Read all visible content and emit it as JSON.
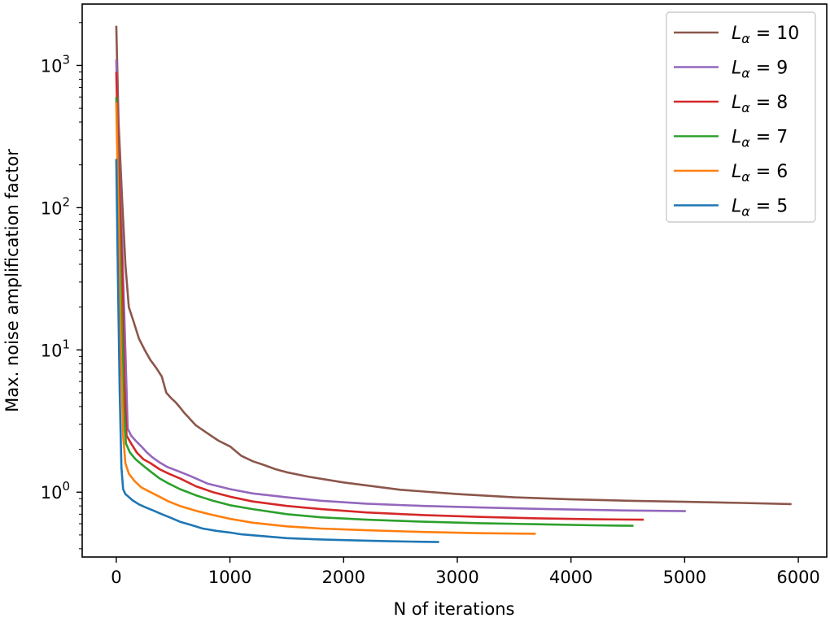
{
  "chart_data": {
    "type": "line",
    "xlabel": "N of iterations",
    "ylabel": "Max. noise amplification factor",
    "xscale": "linear",
    "yscale": "log",
    "xlim": [
      -300,
      6250
    ],
    "ylim": [
      0.35,
      2700
    ],
    "x_ticks": [
      0,
      1000,
      2000,
      3000,
      4000,
      5000,
      6000
    ],
    "x_tick_labels": [
      "0",
      "1000",
      "2000",
      "3000",
      "4000",
      "5000",
      "6000"
    ],
    "y_ticks": [
      {
        "value": 1,
        "base": "10",
        "exponent": "0"
      },
      {
        "value": 10,
        "base": "10",
        "exponent": "1"
      },
      {
        "value": 100,
        "base": "10",
        "exponent": "2"
      },
      {
        "value": 1000,
        "base": "10",
        "exponent": "3"
      }
    ],
    "grid": false,
    "legend_position": "top-right",
    "series": [
      {
        "name": "L_α = 10",
        "legend_prefix": "L",
        "legend_sub": "α",
        "legend_suffix": " = 10",
        "color": "#8c564b",
        "x": [
          0,
          20,
          50,
          80,
          110,
          150,
          200,
          250,
          300,
          350,
          400,
          440,
          480,
          520,
          560,
          600,
          700,
          800,
          900,
          1000,
          1100,
          1200,
          1300,
          1400,
          1500,
          1700,
          2000,
          2500,
          3000,
          3500,
          4000,
          4500,
          5000,
          5500,
          5940
        ],
        "y": [
          1900,
          400,
          120,
          40,
          20,
          16,
          12,
          10,
          8.5,
          7.5,
          6.5,
          5.0,
          4.6,
          4.3,
          3.95,
          3.6,
          2.95,
          2.6,
          2.3,
          2.1,
          1.8,
          1.65,
          1.55,
          1.45,
          1.38,
          1.28,
          1.17,
          1.04,
          0.97,
          0.92,
          0.89,
          0.87,
          0.855,
          0.84,
          0.825
        ]
      },
      {
        "name": "L_α = 9",
        "legend_prefix": "L",
        "legend_sub": "α",
        "legend_suffix": " = 9",
        "color": "#9467bd",
        "x": [
          0,
          20,
          50,
          80,
          100,
          130,
          170,
          220,
          270,
          320,
          380,
          450,
          550,
          650,
          800,
          1000,
          1200,
          1500,
          1800,
          2200,
          2700,
          3200,
          3800,
          4400,
          5010
        ],
        "y": [
          1100,
          250,
          60,
          10,
          2.8,
          2.5,
          2.3,
          2.1,
          1.9,
          1.75,
          1.62,
          1.5,
          1.4,
          1.3,
          1.15,
          1.05,
          0.98,
          0.92,
          0.87,
          0.83,
          0.8,
          0.78,
          0.76,
          0.745,
          0.735
        ]
      },
      {
        "name": "L_α = 8",
        "legend_prefix": "L",
        "legend_sub": "α",
        "legend_suffix": " = 8",
        "color": "#d62728",
        "x": [
          0,
          20,
          50,
          70,
          90,
          130,
          180,
          240,
          300,
          380,
          460,
          560,
          700,
          850,
          1000,
          1200,
          1500,
          1800,
          2200,
          2700,
          3200,
          3700,
          4200,
          4640
        ],
        "y": [
          900,
          200,
          40,
          6,
          2.5,
          2.2,
          1.9,
          1.7,
          1.6,
          1.45,
          1.35,
          1.25,
          1.1,
          1.0,
          0.93,
          0.86,
          0.8,
          0.76,
          0.72,
          0.69,
          0.67,
          0.655,
          0.645,
          0.64
        ]
      },
      {
        "name": "L_α = 7",
        "legend_prefix": "L",
        "legend_sub": "α",
        "legend_suffix": " = 7",
        "color": "#2ca02c",
        "x": [
          0,
          20,
          45,
          65,
          85,
          120,
          170,
          230,
          300,
          380,
          460,
          560,
          700,
          850,
          1000,
          1200,
          1500,
          1800,
          2200,
          2700,
          3200,
          3700,
          4200,
          4550
        ],
        "y": [
          600,
          120,
          20,
          4,
          2.2,
          1.9,
          1.7,
          1.55,
          1.4,
          1.25,
          1.15,
          1.05,
          0.95,
          0.87,
          0.81,
          0.76,
          0.7,
          0.665,
          0.64,
          0.62,
          0.605,
          0.595,
          0.585,
          0.58
        ]
      },
      {
        "name": "L_α = 6",
        "legend_prefix": "L",
        "legend_sub": "α",
        "legend_suffix": " = 6",
        "color": "#ff7f0e",
        "x": [
          0,
          20,
          40,
          60,
          80,
          110,
          160,
          220,
          300,
          380,
          460,
          560,
          700,
          850,
          1000,
          1200,
          1500,
          1800,
          2200,
          2700,
          3200,
          3690
        ],
        "y": [
          550,
          80,
          10,
          2.5,
          1.6,
          1.35,
          1.2,
          1.08,
          1.0,
          0.93,
          0.86,
          0.8,
          0.74,
          0.69,
          0.65,
          0.61,
          0.575,
          0.555,
          0.54,
          0.525,
          0.515,
          0.51
        ]
      },
      {
        "name": "L_α = 5",
        "legend_prefix": "L",
        "legend_sub": "α",
        "legend_suffix": " = 5",
        "color": "#1f77b4",
        "x": [
          0,
          15,
          30,
          45,
          60,
          80,
          100,
          140,
          200,
          260,
          330,
          400,
          480,
          560,
          650,
          760,
          880,
          1000,
          1100,
          1300,
          1500,
          1800,
          2100,
          2400,
          2650,
          2840
        ],
        "y": [
          220,
          30,
          5,
          1.5,
          1.05,
          0.97,
          0.94,
          0.88,
          0.82,
          0.78,
          0.74,
          0.7,
          0.66,
          0.62,
          0.59,
          0.555,
          0.535,
          0.52,
          0.505,
          0.49,
          0.475,
          0.465,
          0.458,
          0.452,
          0.448,
          0.446
        ]
      }
    ]
  }
}
